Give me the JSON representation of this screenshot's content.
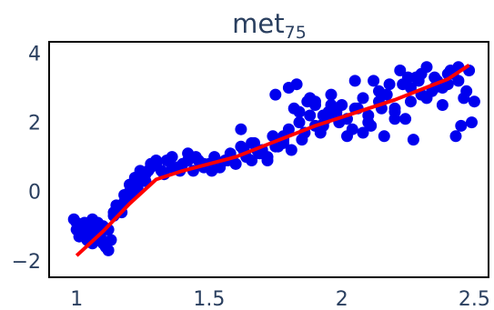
{
  "chart_data": {
    "type": "scatter",
    "title": "met",
    "title_subscript": "75",
    "xlabel": "",
    "ylabel": "",
    "xlim": [
      0.9,
      2.55
    ],
    "ylim": [
      -2.45,
      4.3
    ],
    "x_ticks": [
      1,
      1.5,
      2,
      2.5
    ],
    "x_tick_labels": [
      "1",
      "1.5",
      "2",
      "2.5"
    ],
    "y_ticks": [
      -2,
      0,
      2,
      4
    ],
    "y_tick_labels": [
      "−2",
      "0",
      "2",
      "4"
    ],
    "grid": false,
    "legend": "none",
    "colors": {
      "points": "#0000ee",
      "fit": "#ff0000",
      "text": "#2a3f5f",
      "frame": "#000000"
    },
    "series": [
      {
        "kind": "points",
        "x": [
          0.99,
          1.0,
          1.01,
          1.02,
          1.03,
          1.04,
          1.05,
          1.06,
          1.07,
          1.08,
          1.09,
          1.1,
          1.11,
          1.12,
          1.13,
          1.14,
          1.15,
          1.16,
          1.17,
          1.18,
          1.19,
          1.2,
          1.21,
          1.22,
          1.23,
          1.24,
          1.25,
          1.26,
          1.27,
          1.28,
          1.3,
          1.32,
          1.34,
          1.36,
          1.38,
          1.4,
          1.42,
          1.44,
          1.46,
          1.48,
          1.5,
          1.52,
          1.54,
          1.56,
          1.58,
          1.6,
          1.62,
          1.64,
          1.66,
          1.68,
          1.7,
          1.72,
          1.74,
          1.76,
          1.78,
          1.8,
          1.82,
          1.84,
          1.86,
          1.88,
          1.9,
          1.92,
          1.94,
          1.96,
          1.98,
          2.0,
          2.02,
          2.04,
          2.06,
          2.08,
          2.1,
          2.12,
          2.14,
          2.16,
          2.18,
          2.2,
          2.22,
          2.24,
          2.26,
          2.28,
          2.3,
          2.32,
          2.34,
          2.36,
          2.38,
          2.4,
          2.42,
          2.44,
          2.46,
          2.48,
          1.0,
          1.02,
          1.04,
          1.06,
          1.08,
          1.1,
          1.12,
          1.14,
          1.16,
          1.18,
          1.2,
          1.22,
          1.24,
          1.26,
          1.28,
          1.3,
          1.33,
          1.36,
          1.39,
          1.42,
          1.45,
          1.48,
          1.51,
          1.54,
          1.57,
          1.6,
          1.63,
          1.66,
          1.69,
          1.72,
          1.75,
          1.78,
          1.81,
          1.84,
          1.87,
          1.9,
          1.93,
          1.96,
          1.99,
          2.02,
          2.05,
          2.08,
          2.11,
          2.14,
          2.17,
          2.2,
          2.23,
          2.26,
          2.29,
          2.32,
          2.35,
          2.38,
          2.41,
          2.44,
          2.47,
          1.75,
          1.8,
          1.85,
          1.9,
          1.95,
          1.78,
          1.83,
          1.88,
          1.93,
          1.98,
          2.05,
          2.15,
          2.25,
          2.35,
          2.45,
          2.5,
          2.1,
          2.2,
          2.3,
          2.4,
          1.62,
          1.67,
          1.7,
          1.92,
          2.27,
          2.43,
          2.49
        ],
        "y": [
          -0.8,
          -1.1,
          -1.3,
          -1.0,
          -0.9,
          -1.4,
          -1.2,
          -1.5,
          -1.1,
          -0.9,
          -1.3,
          -1.0,
          -1.6,
          -1.7,
          -1.4,
          -0.7,
          -0.4,
          -0.5,
          -0.6,
          -0.3,
          -0.2,
          0.0,
          -0.1,
          0.2,
          0.1,
          0.3,
          0.4,
          0.5,
          0.6,
          0.7,
          0.8,
          0.6,
          0.9,
          1.0,
          0.7,
          0.8,
          1.1,
          0.6,
          0.9,
          0.7,
          0.8,
          1.0,
          0.7,
          0.9,
          1.1,
          0.8,
          1.3,
          1.0,
          1.4,
          1.2,
          1.1,
          0.9,
          1.6,
          1.3,
          1.5,
          1.8,
          2.4,
          2.0,
          1.7,
          2.2,
          2.6,
          1.9,
          2.1,
          2.8,
          2.3,
          2.5,
          1.6,
          1.8,
          2.4,
          2.7,
          2.2,
          3.2,
          2.9,
          1.6,
          3.1,
          2.4,
          3.5,
          2.1,
          3.0,
          3.3,
          2.8,
          3.6,
          2.9,
          3.2,
          2.5,
          3.1,
          3.4,
          3.2,
          2.7,
          3.5,
          -0.9,
          -1.2,
          -1.0,
          -0.8,
          -1.3,
          -1.5,
          -1.1,
          -0.6,
          -0.5,
          -0.1,
          0.2,
          0.4,
          0.6,
          0.3,
          0.8,
          0.9,
          0.5,
          0.7,
          0.6,
          0.9,
          1.0,
          0.8,
          0.6,
          0.7,
          0.9,
          0.8,
          1.2,
          0.9,
          1.1,
          1.0,
          1.3,
          1.4,
          1.2,
          2.3,
          2.6,
          1.9,
          2.2,
          2.5,
          2.0,
          2.1,
          2.4,
          1.7,
          1.9,
          2.6,
          2.8,
          2.3,
          3.1,
          2.6,
          3.2,
          2.7,
          3.3,
          3.0,
          3.5,
          3.6,
          2.9,
          2.8,
          3.0,
          1.5,
          2.5,
          2.3,
          1.6,
          3.1,
          2.7,
          1.9,
          2.2,
          3.2,
          2.4,
          3.3,
          3.0,
          1.9,
          2.6,
          2.0,
          2.1,
          3.4,
          3.4,
          1.8,
          1.4,
          1.2,
          1.7,
          1.5,
          1.6,
          2.0
        ]
      },
      {
        "kind": "fit_line",
        "x": [
          1.0,
          1.1,
          1.2,
          1.3,
          1.4,
          1.5,
          1.6,
          1.7,
          1.8,
          1.9,
          2.0,
          2.1,
          2.2,
          2.3,
          2.4,
          2.48
        ],
        "y": [
          -1.85,
          -1.15,
          -0.35,
          0.35,
          0.6,
          0.8,
          1.0,
          1.3,
          1.6,
          1.9,
          2.15,
          2.4,
          2.65,
          2.95,
          3.25,
          3.65
        ]
      }
    ]
  }
}
